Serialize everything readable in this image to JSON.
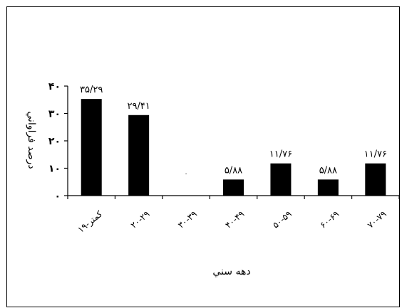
{
  "chart_data": {
    "type": "bar",
    "title": "",
    "xlabel": "دهه سني",
    "ylabel": "درصد فراواني",
    "categories": [
      "۱۹-کمتر",
      "۲۰-۲۹",
      "۳۰-۳۹",
      "۴۰-۴۹",
      "۵۰-۵۹",
      "۶۰-۶۹",
      "۷۰-۷۹"
    ],
    "values": [
      35.29,
      29.41,
      0,
      5.88,
      11.76,
      5.88,
      11.76
    ],
    "data_labels": [
      "۳۵/۲۹",
      "۲۹/۴۱",
      "۰",
      "۵/۸۸",
      "۱۱/۷۶",
      "۵/۸۸",
      "۱۱/۷۶"
    ],
    "yticks": [
      0,
      10,
      20,
      30,
      40
    ],
    "ytick_labels": [
      "۰",
      "۱۰",
      "۲۰",
      "۳۰",
      "۴۰"
    ],
    "ylim": [
      0,
      40
    ],
    "grid": false,
    "legend": "none",
    "colors": {
      "bar": "#000000",
      "axis": "#000000",
      "background": "#ffffff"
    }
  }
}
